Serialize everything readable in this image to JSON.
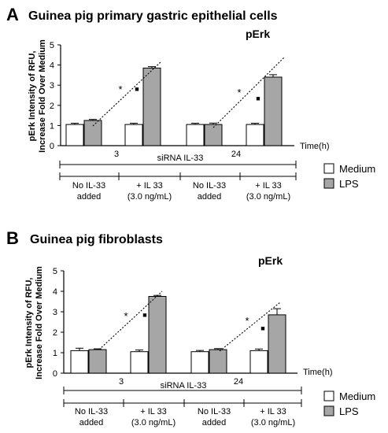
{
  "panels": [
    {
      "letter": "A",
      "title": "Guinea pig primary gastric epithelial cells",
      "marker": "pErk",
      "ylabel_line1": "pErk Intensity of RFU,",
      "ylabel_line2": "Increase Fold Over Medium",
      "yticks": [
        "0",
        "1",
        "2",
        "3",
        "4",
        "5"
      ],
      "time_label": "Time(h)",
      "time_3": "3",
      "time_24": "24",
      "sirna_label": "siRNA IL-33",
      "cond1_line1": "No IL-33",
      "cond1_line2": "added",
      "cond2_line1": "+ IL 33",
      "cond2_line2": "(3.0 ng/mL)",
      "star": "*",
      "square": "■"
    },
    {
      "letter": "B",
      "title": "Guinea pig fibroblasts",
      "marker": "pErk",
      "ylabel_line1": "pErk Intensity of RFU,",
      "ylabel_line2": "Increase Fold Over Medium",
      "yticks": [
        "0",
        "1",
        "2",
        "3",
        "4",
        "5"
      ],
      "time_label": "Time(h)",
      "time_3": "3",
      "time_24": "24",
      "sirna_label": "siRNA IL-33",
      "cond1_line1": "No IL-33",
      "cond1_line2": "added",
      "cond2_line1": "+ IL 33",
      "cond2_line2": "(3.0 ng/mL)",
      "star": "*",
      "square": "■"
    }
  ],
  "legend": {
    "medium": "Medium",
    "lps": "LPS"
  },
  "colors": {
    "medium": "#ffffff",
    "lps": "#a6a6a6",
    "axis": "#000000"
  },
  "chart_data": [
    {
      "type": "bar",
      "title": "Guinea pig primary gastric epithelial cells",
      "ylabel": "pErk Intensity of RFU, Increase Fold Over Medium",
      "xlabel": "Time(h)",
      "ylim": [
        0,
        5
      ],
      "categories": [
        "3h No IL-33 added",
        "3h + IL 33 (3.0 ng/mL)",
        "24h No IL-33 added",
        "24h + IL 33 (3.0 ng/mL)"
      ],
      "series": [
        {
          "name": "Medium",
          "values": [
            1.05,
            1.05,
            1.05,
            1.05
          ],
          "errors": [
            0.06,
            0.06,
            0.06,
            0.06
          ]
        },
        {
          "name": "LPS",
          "values": [
            1.25,
            3.85,
            1.05,
            3.4
          ],
          "errors": [
            0.05,
            0.07,
            0.07,
            0.12
          ]
        }
      ]
    },
    {
      "type": "bar",
      "title": "Guinea pig fibroblasts",
      "ylabel": "pErk Intensity of RFU, Increase Fold Over Medium",
      "xlabel": "Time(h)",
      "ylim": [
        0,
        5
      ],
      "categories": [
        "3h No IL-33 added",
        "3h + IL 33 (3.0 ng/mL)",
        "24h No IL-33 added",
        "24h + IL 33 (3.0 ng/mL)"
      ],
      "series": [
        {
          "name": "Medium",
          "values": [
            1.1,
            1.05,
            1.05,
            1.1
          ],
          "errors": [
            0.12,
            0.08,
            0.06,
            0.08
          ]
        },
        {
          "name": "LPS",
          "values": [
            1.15,
            3.75,
            1.15,
            2.85
          ],
          "errors": [
            0.04,
            0.05,
            0.05,
            0.3
          ]
        }
      ]
    }
  ]
}
